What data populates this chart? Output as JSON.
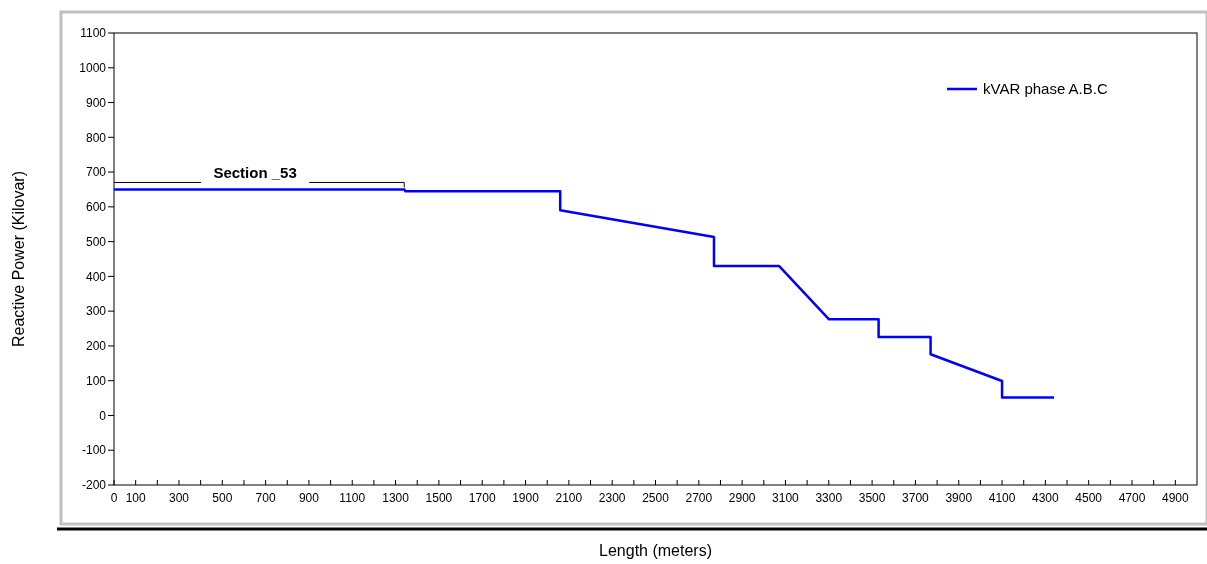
{
  "chart_data": {
    "type": "line",
    "xlabel": "Length (meters)",
    "ylabel": "Reactive Power (Kilovar)",
    "xlim": [
      0,
      5000
    ],
    "xticks": [
      0,
      {
        "value": 100,
        "label": "100"
      },
      {
        "value": 200,
        "label": null
      },
      300,
      {
        "value": 400,
        "label": null
      },
      500,
      {
        "value": 600,
        "label": null
      },
      700,
      {
        "value": 800,
        "label": null
      },
      900,
      {
        "value": 1000,
        "label": null
      },
      1100,
      {
        "value": 1200,
        "label": null
      },
      1300,
      {
        "value": 1400,
        "label": null
      },
      1500,
      {
        "value": 1600,
        "label": null
      },
      1700,
      {
        "value": 1800,
        "label": null
      },
      1900,
      {
        "value": 2000,
        "label": null
      },
      2100,
      {
        "value": 2200,
        "label": null
      },
      2300,
      {
        "value": 2400,
        "label": null
      },
      2500,
      {
        "value": 2600,
        "label": null
      },
      2700,
      {
        "value": 2800,
        "label": null
      },
      2900,
      {
        "value": 3000,
        "label": null
      },
      3100,
      {
        "value": 3200,
        "label": null
      },
      3300,
      {
        "value": 3400,
        "label": null
      },
      3500,
      {
        "value": 3600,
        "label": null
      },
      3700,
      {
        "value": 3800,
        "label": null
      },
      3900,
      {
        "value": 4000,
        "label": null
      },
      4100,
      {
        "value": 4200,
        "label": null
      },
      4300,
      {
        "value": 4400,
        "label": null
      },
      4500,
      {
        "value": 4600,
        "label": null
      },
      4700,
      {
        "value": 4800,
        "label": null
      },
      4900
    ],
    "ylim": [
      -200,
      1100
    ],
    "yticks": [
      -200,
      -100,
      0,
      100,
      200,
      300,
      400,
      500,
      600,
      700,
      800,
      900,
      1000,
      1100
    ],
    "grid": false,
    "legend": "top right",
    "marker": "none",
    "line_style": "solid",
    "annotations": [
      {
        "text": "Section _53",
        "x": 1340,
        "y": 650
      }
    ],
    "series": [
      {
        "name": "kVAR phase A.B.C",
        "color": "#0000ff",
        "x": [
          0,
          1340,
          1345,
          2060,
          2060,
          2770,
          2770,
          3070,
          3300,
          3530,
          3530,
          3770,
          3770,
          4100,
          4100,
          4340
        ],
        "values": [
          650,
          650,
          645,
          645,
          590,
          513,
          430,
          430,
          277,
          277,
          226,
          226,
          176,
          99,
          52,
          52
        ]
      }
    ]
  }
}
